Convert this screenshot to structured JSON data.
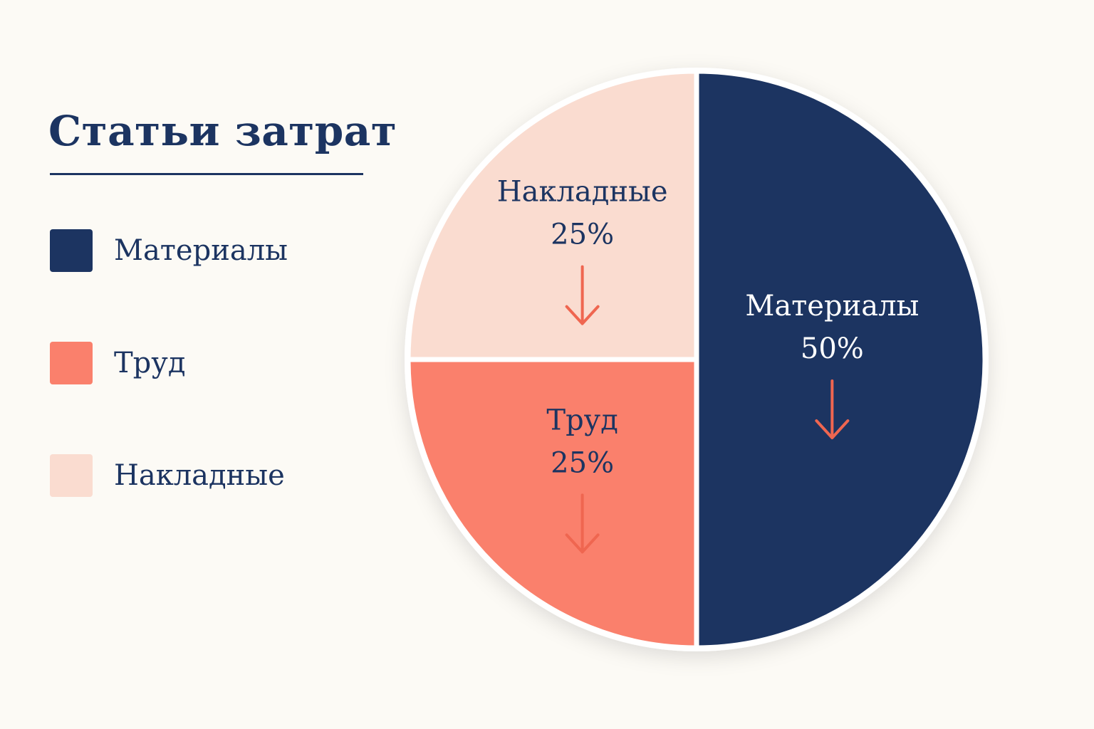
{
  "chart_data": {
    "type": "pie",
    "title": "Статьи затрат",
    "categories": [
      "Материалы",
      "Труд",
      "Накладные"
    ],
    "values": [
      50,
      25,
      25
    ],
    "value_labels": [
      "50%",
      "25%",
      "25%"
    ],
    "colors": [
      "#1c3461",
      "#fa806c",
      "#fadcd0"
    ],
    "label_colors": [
      "#ffffff",
      "#1c3461",
      "#1c3461"
    ],
    "arrow_color": "#ef6650",
    "legend_position": "left"
  }
}
